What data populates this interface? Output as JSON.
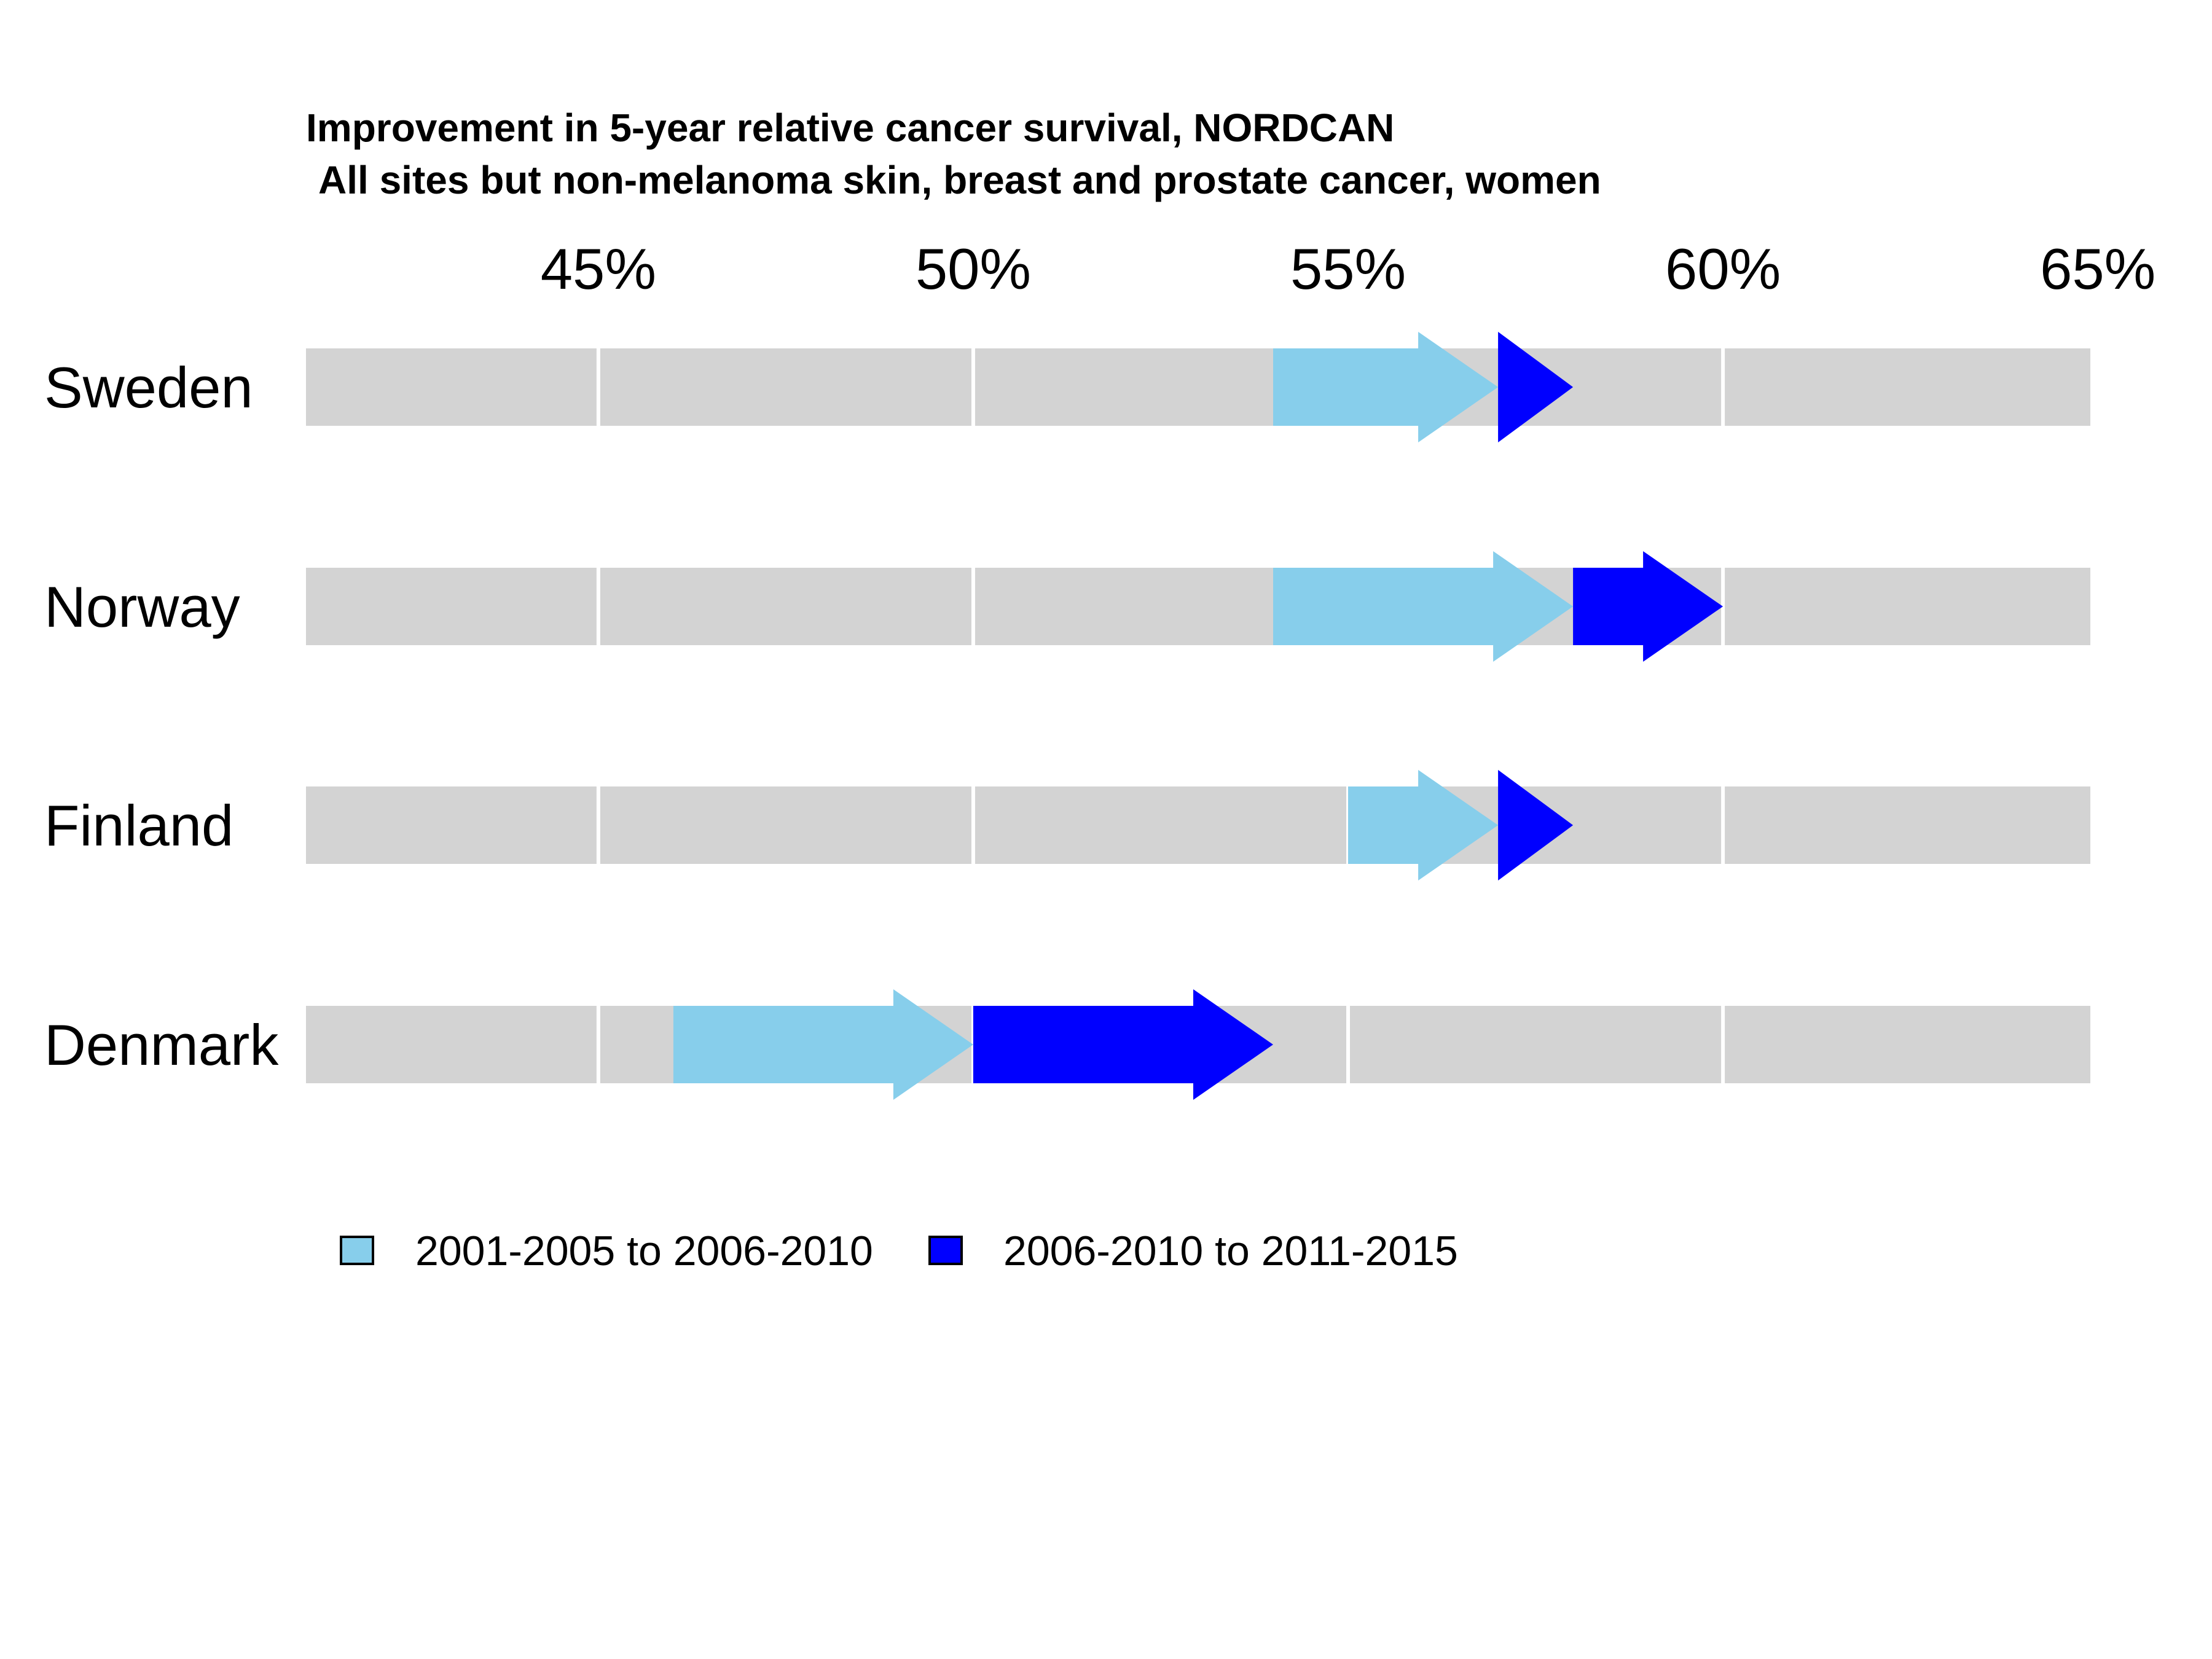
{
  "chart_data": {
    "type": "arrow",
    "title": "Improvement in 5-year relative cancer survival, NORDCAN",
    "subtitle": "All sites but non-melanoma skin, breast and prostate cancer, women",
    "xlim": [
      41.1,
      64.9
    ],
    "x_ticks": [
      45,
      50,
      55,
      60,
      65
    ],
    "x_tick_labels": [
      "45%",
      "50%",
      "55%",
      "60%",
      "65%"
    ],
    "x_axis_position": "top",
    "grid": true,
    "legend_position": "bottom-left",
    "categories": [
      "Sweden",
      "Norway",
      "Finland",
      "Denmark"
    ],
    "series": [
      {
        "name": "2001-2005 to 2006-2010",
        "color": "#87CEEB",
        "segments": [
          {
            "country": "Sweden",
            "from": 54.0,
            "to": 57.0
          },
          {
            "country": "Norway",
            "from": 54.0,
            "to": 58.0
          },
          {
            "country": "Finland",
            "from": 55.0,
            "to": 57.0
          },
          {
            "country": "Denmark",
            "from": 46.0,
            "to": 50.0
          }
        ]
      },
      {
        "name": "2006-2010 to 2011-2015",
        "color": "#0000FF",
        "segments": [
          {
            "country": "Sweden",
            "from": 57.0,
            "to": 58.0
          },
          {
            "country": "Norway",
            "from": 58.0,
            "to": 60.0
          },
          {
            "country": "Finland",
            "from": 57.0,
            "to": 58.0
          },
          {
            "country": "Denmark",
            "from": 50.0,
            "to": 54.0
          }
        ]
      }
    ],
    "colors": {
      "band": "#D3D3D3",
      "gridline": "#FFFFFF",
      "legend_border": "#000000"
    }
  }
}
